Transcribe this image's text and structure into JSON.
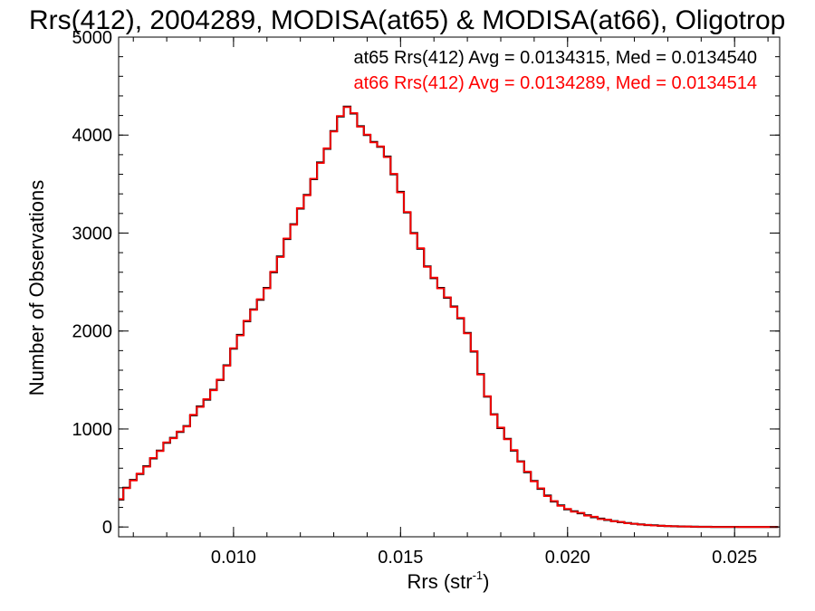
{
  "chart_data": {
    "type": "line",
    "title": "Rrs(412), 2004289, MODISA(at65) & MODISA(at66), Oligotrop",
    "xlabel": "Rrs (str",
    "xlabel_sup": "-1",
    "xlabel_close": ")",
    "ylabel": "Number of Observations",
    "xlim": [
      0.00656,
      0.02635
    ],
    "ylim": [
      -100,
      5000
    ],
    "x_ticks": [
      {
        "value": 0.01,
        "label": "0.010"
      },
      {
        "value": 0.015,
        "label": "0.015"
      },
      {
        "value": 0.02,
        "label": "0.020"
      },
      {
        "value": 0.025,
        "label": "0.025"
      }
    ],
    "y_ticks": [
      {
        "value": 0,
        "label": "0"
      },
      {
        "value": 1000,
        "label": "1000"
      },
      {
        "value": 2000,
        "label": "2000"
      },
      {
        "value": 3000,
        "label": "3000"
      },
      {
        "value": 4000,
        "label": "4000"
      },
      {
        "value": 5000,
        "label": "5000"
      }
    ],
    "grid": false,
    "legend_position": "top-right",
    "x": [
      0.0066,
      0.0068,
      0.007,
      0.0072,
      0.0074,
      0.0076,
      0.0078,
      0.008,
      0.0082,
      0.0084,
      0.0086,
      0.0088,
      0.009,
      0.0092,
      0.0094,
      0.0096,
      0.0098,
      0.01,
      0.0102,
      0.0104,
      0.0106,
      0.0108,
      0.011,
      0.0112,
      0.0114,
      0.0116,
      0.0118,
      0.012,
      0.0122,
      0.0124,
      0.0126,
      0.0128,
      0.013,
      0.0132,
      0.0134,
      0.0136,
      0.0138,
      0.014,
      0.0142,
      0.0144,
      0.0146,
      0.0148,
      0.015,
      0.0152,
      0.0154,
      0.0156,
      0.0158,
      0.016,
      0.0162,
      0.0164,
      0.0166,
      0.0168,
      0.017,
      0.0172,
      0.0174,
      0.0176,
      0.0178,
      0.018,
      0.0182,
      0.0184,
      0.0186,
      0.0188,
      0.019,
      0.0192,
      0.0194,
      0.0196,
      0.0198,
      0.02,
      0.0202,
      0.0204,
      0.0206,
      0.0208,
      0.021,
      0.0212,
      0.0214,
      0.0216,
      0.0218,
      0.022,
      0.0222,
      0.0224,
      0.0226,
      0.0228,
      0.023,
      0.0232,
      0.0234,
      0.0236,
      0.0238,
      0.024,
      0.0242,
      0.0244,
      0.0246,
      0.0248,
      0.025,
      0.0252,
      0.0254,
      0.0256,
      0.0258,
      0.026,
      0.0262
    ],
    "series": [
      {
        "name": "at65",
        "color": "#000000",
        "legend": "at65 Rrs(412) Avg = 0.0134315, Med = 0.0134540",
        "values": [
          280,
          400,
          480,
          540,
          620,
          700,
          780,
          860,
          910,
          970,
          1030,
          1140,
          1230,
          1300,
          1400,
          1500,
          1650,
          1820,
          1960,
          2100,
          2220,
          2320,
          2440,
          2600,
          2760,
          2940,
          3090,
          3250,
          3390,
          3550,
          3720,
          3860,
          4040,
          4190,
          4290,
          4220,
          4090,
          4000,
          3930,
          3880,
          3780,
          3600,
          3420,
          3210,
          3000,
          2840,
          2660,
          2540,
          2440,
          2340,
          2250,
          2130,
          1980,
          1790,
          1560,
          1330,
          1150,
          1010,
          900,
          780,
          670,
          560,
          470,
          390,
          320,
          260,
          220,
          180,
          160,
          140,
          120,
          100,
          85,
          72,
          60,
          50,
          40,
          32,
          26,
          20,
          16,
          12,
          9,
          7,
          5,
          4,
          3,
          2,
          2,
          1,
          1,
          1,
          1,
          0,
          0,
          0,
          0,
          0,
          0
        ]
      },
      {
        "name": "at66",
        "color": "#ff0000",
        "legend": "at66 Rrs(412) Avg = 0.0134289, Med = 0.0134514",
        "values": [
          285,
          395,
          475,
          545,
          615,
          705,
          775,
          865,
          905,
          975,
          1025,
          1145,
          1225,
          1305,
          1395,
          1505,
          1645,
          1825,
          1955,
          2105,
          2215,
          2325,
          2435,
          2605,
          2755,
          2945,
          3085,
          3255,
          3385,
          3555,
          3715,
          3865,
          4035,
          4195,
          4285,
          4225,
          4085,
          4005,
          3925,
          3885,
          3775,
          3605,
          3415,
          3215,
          2995,
          2845,
          2655,
          2545,
          2435,
          2345,
          2245,
          2135,
          1975,
          1795,
          1555,
          1335,
          1145,
          1015,
          895,
          785,
          665,
          565,
          465,
          395,
          315,
          265,
          215,
          185,
          155,
          145,
          115,
          105,
          80,
          75,
          58,
          52,
          38,
          33,
          25,
          21,
          15,
          13,
          9,
          7,
          5,
          4,
          3,
          2,
          2,
          1,
          1,
          1,
          1,
          0,
          0,
          0,
          0,
          0,
          0
        ]
      }
    ]
  }
}
